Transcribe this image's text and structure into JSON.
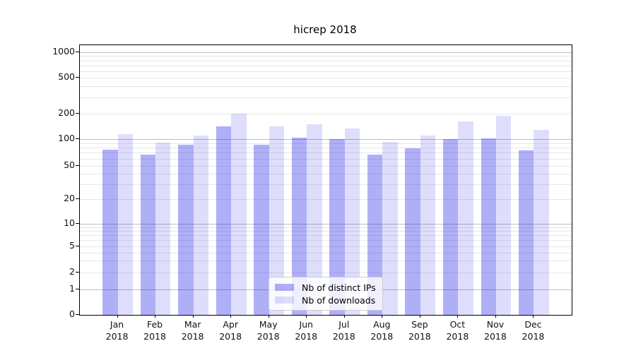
{
  "title": "hicrep 2018",
  "chart_data": {
    "type": "bar",
    "title": "hicrep 2018",
    "categories": [
      "Jan 2018",
      "Feb 2018",
      "Mar 2018",
      "Apr 2018",
      "May 2018",
      "Jun 2018",
      "Jul 2018",
      "Aug 2018",
      "Sep 2018",
      "Oct 2018",
      "Nov 2018",
      "Dec 2018"
    ],
    "series": [
      {
        "name": "Nb of distinct IPs",
        "color_hex_apparent": "#a9a9f7",
        "fill_rgba": "rgba(20,20,235,0.34)",
        "values": [
          76,
          66,
          87,
          141,
          87,
          103,
          100,
          67,
          79,
          100,
          102,
          74
        ]
      },
      {
        "name": "Nb of downloads",
        "color_hex_apparent": "#dcdcf9",
        "fill_rgba": "rgba(20,20,235,0.14)",
        "values": [
          115,
          92,
          110,
          200,
          141,
          149,
          133,
          93,
          111,
          162,
          190,
          128
        ]
      }
    ],
    "yscale": "symlog",
    "ylim": [
      0,
      1200
    ],
    "yticks": [
      0,
      1,
      2,
      5,
      10,
      20,
      50,
      100,
      200,
      500,
      1000
    ],
    "grid": "both",
    "gridline_major_color": "#bdbdbd",
    "legend_position": "lower center",
    "xlabel": "",
    "ylabel": ""
  }
}
